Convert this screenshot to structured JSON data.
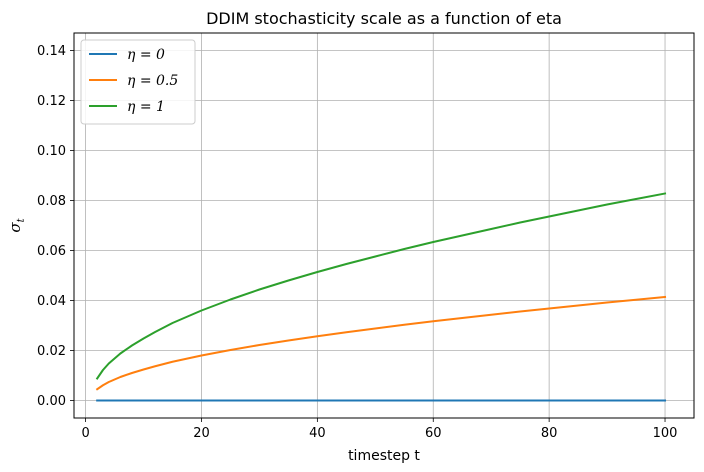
{
  "chart_data": {
    "type": "line",
    "title": "DDIM stochasticity scale as a function of eta",
    "xlabel": "timestep t",
    "ylabel": "σ",
    "ylabel_sub": "t",
    "xlim": [
      -2,
      105
    ],
    "ylim": [
      -0.007,
      0.147
    ],
    "xticks": [
      0,
      20,
      40,
      60,
      80,
      100
    ],
    "xtick_labels": [
      "0",
      "20",
      "40",
      "60",
      "80",
      "100"
    ],
    "yticks": [
      0.0,
      0.02,
      0.04,
      0.06,
      0.08,
      0.1,
      0.12,
      0.14
    ],
    "ytick_labels": [
      "0.00",
      "0.02",
      "0.04",
      "0.06",
      "0.08",
      "0.10",
      "0.12",
      "0.14"
    ],
    "grid": true,
    "legend_position": "top-left",
    "x": [
      2,
      3,
      4,
      5,
      6,
      8,
      10,
      12,
      15,
      20,
      25,
      30,
      35,
      40,
      45,
      50,
      55,
      60,
      65,
      70,
      75,
      80,
      85,
      90,
      95,
      100
    ],
    "series": [
      {
        "name": "η = 0",
        "color": "#1f77b4",
        "values": [
          0,
          0,
          0,
          0,
          0,
          0,
          0,
          0,
          0,
          0,
          0,
          0,
          0,
          0,
          0,
          0,
          0,
          0,
          0,
          0,
          0,
          0,
          0,
          0,
          0,
          0
        ]
      },
      {
        "name": "η = 0.5",
        "color": "#ff7f0e",
        "values": [
          0.0045,
          0.0061,
          0.0074,
          0.0084,
          0.0094,
          0.011,
          0.0124,
          0.0137,
          0.0155,
          0.018,
          0.0202,
          0.0222,
          0.024,
          0.0257,
          0.0273,
          0.0288,
          0.0303,
          0.0317,
          0.033,
          0.0343,
          0.0356,
          0.0368,
          0.038,
          0.0392,
          0.0403,
          0.0414
        ]
      },
      {
        "name": "η = 1",
        "color": "#2ca02c",
        "values": [
          0.0088,
          0.0122,
          0.0148,
          0.0168,
          0.0188,
          0.022,
          0.0248,
          0.0274,
          0.031,
          0.036,
          0.0404,
          0.0444,
          0.048,
          0.0514,
          0.0546,
          0.0576,
          0.0606,
          0.0634,
          0.066,
          0.0686,
          0.0712,
          0.0736,
          0.076,
          0.0784,
          0.0806,
          0.0828
        ]
      }
    ]
  }
}
